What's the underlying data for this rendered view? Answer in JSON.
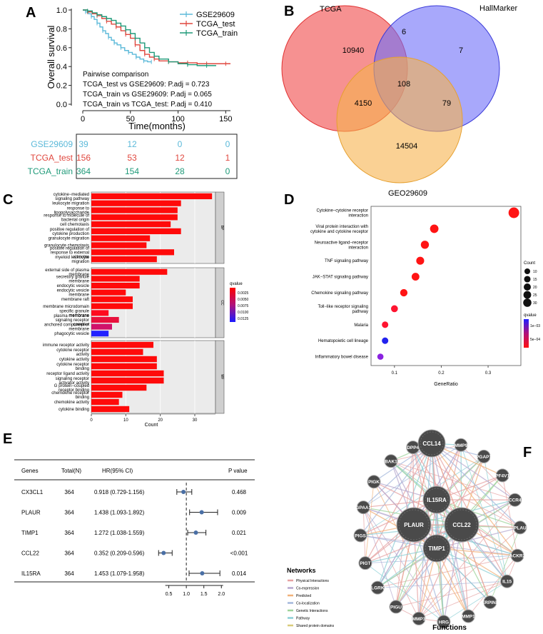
{
  "panels": {
    "A": {
      "letter": "A",
      "chart_data": {
        "type": "line",
        "subtype": "kaplan-meier",
        "ylabel": "Overall survival",
        "xlabel": "Time(months)",
        "xlim": [
          0,
          155
        ],
        "ylim": [
          0,
          1
        ],
        "xticks": [
          0,
          50,
          100,
          150
        ],
        "yticks": [
          0.0,
          0.2,
          0.4,
          0.6,
          0.8,
          1.0
        ],
        "ytick_labels": [
          "0.0",
          "0.2",
          "0.4",
          "0.6",
          "0.8",
          "1.0"
        ],
        "series": [
          {
            "name": "GSE29609",
            "color": "#5bb9d9",
            "x": [
              0,
              3,
              6,
              9,
              12,
              15,
              18,
              21,
              24,
              27,
              30,
              33,
              36,
              40,
              44,
              48,
              52,
              56,
              60,
              64,
              68,
              72
            ],
            "y": [
              1.0,
              0.98,
              0.96,
              0.93,
              0.9,
              0.86,
              0.82,
              0.78,
              0.75,
              0.71,
              0.68,
              0.65,
              0.63,
              0.6,
              0.57,
              0.55,
              0.53,
              0.5,
              0.48,
              0.46,
              0.45,
              0.45
            ]
          },
          {
            "name": "TCGA_test",
            "color": "#e0473e",
            "x": [
              0,
              5,
              10,
              15,
              20,
              25,
              30,
              35,
              40,
              45,
              50,
              55,
              60,
              65,
              70,
              75,
              80,
              90,
              100,
              110,
              120,
              130,
              140,
              150,
              155
            ],
            "y": [
              1.0,
              0.98,
              0.96,
              0.94,
              0.91,
              0.88,
              0.85,
              0.82,
              0.78,
              0.74,
              0.7,
              0.63,
              0.57,
              0.53,
              0.5,
              0.48,
              0.46,
              0.45,
              0.44,
              0.44,
              0.43,
              0.43,
              0.43,
              0.43,
              0.43
            ]
          },
          {
            "name": "TCGA_train",
            "color": "#1f9a79",
            "x": [
              0,
              5,
              10,
              15,
              20,
              25,
              30,
              35,
              40,
              45,
              50,
              55,
              60,
              65,
              70,
              75,
              80,
              90,
              100,
              110,
              120,
              130,
              140
            ],
            "y": [
              1.0,
              0.99,
              0.97,
              0.95,
              0.93,
              0.91,
              0.89,
              0.86,
              0.83,
              0.79,
              0.75,
              0.7,
              0.65,
              0.6,
              0.55,
              0.51,
              0.48,
              0.45,
              0.43,
              0.42,
              0.41,
              0.41,
              0.41
            ]
          }
        ],
        "legend": [
          "GSE29609",
          "TCGA_test",
          "TCGA_train"
        ],
        "annotation_title": "Pairwise comparison",
        "annotations": [
          "TCGA_test vs GSE29609: P.adj = 0.723",
          "TCGA_train vs GSE29609: P.adj = 0.065",
          "TCGA_train vs TCGA_test: P.adj = 0.410"
        ],
        "risk_table": [
          {
            "name": "GSE29609",
            "values": [
              "39",
              "12",
              "0",
              "0"
            ]
          },
          {
            "name": "TCGA_test",
            "values": [
              "156",
              "53",
              "12",
              "1"
            ]
          },
          {
            "name": "TCGA_train",
            "values": [
              "364",
              "154",
              "28",
              "0"
            ]
          }
        ]
      }
    },
    "B": {
      "letter": "B",
      "chart_data": {
        "type": "venn",
        "sets": [
          {
            "name": "TCGA",
            "color": "#f04848"
          },
          {
            "name": "HallMarker",
            "color": "#6e6ef8"
          },
          {
            "name": "GEO29609",
            "color": "#f7b24d"
          }
        ],
        "regions": {
          "tcga_only": "10940",
          "tcga_hall": "6",
          "hall_only": "7",
          "all_three": "108",
          "tcga_geo": "4150",
          "hall_geo": "79",
          "geo_only": "14504"
        }
      }
    },
    "C": {
      "letter": "C",
      "chart_data": {
        "type": "bar",
        "orientation": "horizontal",
        "xlabel": "Count",
        "xticks": [
          "0",
          "10",
          "20",
          "30"
        ],
        "xlim": [
          0,
          36
        ],
        "legend_title": "qvalue",
        "legend_ticks": [
          "0.0025",
          "0.0050",
          "0.0075",
          "0.0100",
          "0.0125"
        ],
        "groups": [
          {
            "name": "BP",
            "bars": [
              {
                "label": "cytokine−mediated signaling pathway",
                "value": 35,
                "color": "#ff0a0a"
              },
              {
                "label": "leukocyte migration",
                "value": 26,
                "color": "#ff0a0a"
              },
              {
                "label": "response to lipopolysaccharide",
                "value": 25,
                "color": "#ff0a0a"
              },
              {
                "label": "response to molecule of bacterial origin",
                "value": 25,
                "color": "#ff0a0a"
              },
              {
                "label": "cell chemotaxis",
                "value": 23,
                "color": "#ff0a0a"
              },
              {
                "label": "positive regulation of cytokine production",
                "value": 26,
                "color": "#ff0a0a"
              },
              {
                "label": "granulocyte migration",
                "value": 17,
                "color": "#ff0a0a"
              },
              {
                "label": "granulocyte chemotaxis",
                "value": 16,
                "color": "#ff0a0a"
              },
              {
                "label": "positive regulation of response to external stimulus",
                "value": 24,
                "color": "#ff0a0a"
              },
              {
                "label": "myeloid leukocyte migration",
                "value": 19,
                "color": "#ff0a0a"
              }
            ]
          },
          {
            "name": "CC",
            "bars": [
              {
                "label": "external side of plasma membrane",
                "value": 22,
                "color": "#ff0a0a"
              },
              {
                "label": "secretory granule membrane",
                "value": 14,
                "color": "#ff0a0a"
              },
              {
                "label": "endocytic vesicle",
                "value": 14,
                "color": "#ff0a0a"
              },
              {
                "label": "endocytic vesicle membrane",
                "value": 10,
                "color": "#ff0a0a"
              },
              {
                "label": "membrane raft",
                "value": 12,
                "color": "#ff0a0a"
              },
              {
                "label": "membrane microdomain",
                "value": 12,
                "color": "#ff0a0a"
              },
              {
                "label": "specific granule membrane",
                "value": 5,
                "color": "#ff0a1e"
              },
              {
                "label": "plasma membrane signaling receptor complex",
                "value": 8,
                "color": "#e8103c"
              },
              {
                "label": "anchored component of membrane",
                "value": 6,
                "color": "#d0126a"
              },
              {
                "label": "phagocytic vesicle",
                "value": 5,
                "color": "#2222ff"
              }
            ]
          },
          {
            "name": "MF",
            "bars": [
              {
                "label": "immune receptor activity",
                "value": 18,
                "color": "#ff0a0a"
              },
              {
                "label": "cytokine receptor activity",
                "value": 15,
                "color": "#ff0a0a"
              },
              {
                "label": "cytokine activity",
                "value": 19,
                "color": "#ff0a0a"
              },
              {
                "label": "cytokine receptor binding",
                "value": 19,
                "color": "#ff0a0a"
              },
              {
                "label": "receptor ligand activity",
                "value": 21,
                "color": "#ff0a0a"
              },
              {
                "label": "signaling receptor activator activity",
                "value": 21,
                "color": "#ff0a0a"
              },
              {
                "label": "G protein−coupled receptor binding",
                "value": 16,
                "color": "#ff0a0a"
              },
              {
                "label": "chemokine receptor binding",
                "value": 9,
                "color": "#ff0a0a"
              },
              {
                "label": "chemokine activity",
                "value": 8,
                "color": "#ff0a0a"
              },
              {
                "label": "cytokine binding",
                "value": 11,
                "color": "#ff0a0a"
              }
            ]
          }
        ]
      }
    },
    "D": {
      "letter": "D",
      "chart_data": {
        "type": "scatter",
        "subtype": "dotplot",
        "xlabel": "GeneRatio",
        "xlim": [
          0.05,
          0.37
        ],
        "xticks": [
          0.1,
          0.2,
          0.3
        ],
        "xtick_labels": [
          "0.1",
          "0.2",
          "0.3"
        ],
        "size_legend_title": "Count",
        "size_legend": [
          "10",
          "15",
          "20",
          "25",
          "30"
        ],
        "color_legend_title": "qvalue",
        "color_legend_ticks": [
          "1e−03",
          "5e−04"
        ],
        "points": [
          {
            "label": "Cytokine−cytokine receptor interaction",
            "x": 0.355,
            "count": 33,
            "color": "#ff1414"
          },
          {
            "label": "Viral protein interaction with cytokine and cytokine receptor",
            "x": 0.185,
            "count": 17,
            "color": "#ff1414"
          },
          {
            "label": "Neuroactive ligand−receptor interaction",
            "x": 0.165,
            "count": 15,
            "color": "#ff1414"
          },
          {
            "label": "TNF signaling pathway",
            "x": 0.155,
            "count": 14,
            "color": "#ff1414"
          },
          {
            "label": "JAK−STAT signaling pathway",
            "x": 0.145,
            "count": 13,
            "color": "#ff1414"
          },
          {
            "label": "Chemokine signaling pathway",
            "x": 0.12,
            "count": 11,
            "color": "#ff1414"
          },
          {
            "label": "Toll−like receptor signaling pathway",
            "x": 0.1,
            "count": 9,
            "color": "#ff1430"
          },
          {
            "label": "Malaria",
            "x": 0.08,
            "count": 7,
            "color": "#ff1430"
          },
          {
            "label": "Hematopoietic cell lineage",
            "x": 0.08,
            "count": 7,
            "color": "#2222ee"
          },
          {
            "label": "Inflammatory bowel disease",
            "x": 0.07,
            "count": 6,
            "color": "#8a22e0"
          }
        ]
      }
    },
    "E": {
      "letter": "E",
      "headers": {
        "genes": "Genes",
        "total": "Total(N)",
        "hr": "HR(95% CI)",
        "p": "P value"
      },
      "axis_ticks": [
        "0.5",
        "1.0",
        "1.5",
        "2.0"
      ],
      "chart_data": {
        "type": "table",
        "subtype": "forest-plot",
        "xlim": [
          0.0,
          2.3
        ],
        "xticks": [
          0.5,
          1.0,
          1.5,
          2.0
        ],
        "reference_line": 1.0,
        "rows": [
          {
            "gene": "CX3CL1",
            "total": "364",
            "hr_text": "0.918 (0.729-1.156)",
            "p": "0.468",
            "hr": 0.918,
            "low": 0.729,
            "high": 1.156
          },
          {
            "gene": "PLAUR",
            "total": "364",
            "hr_text": "1.438 (1.093-1.892)",
            "p": "0.009",
            "hr": 1.438,
            "low": 1.093,
            "high": 1.892
          },
          {
            "gene": "TIMP1",
            "total": "364",
            "hr_text": "1.272 (1.038-1.559)",
            "p": "0.021",
            "hr": 1.272,
            "low": 1.038,
            "high": 1.559
          },
          {
            "gene": "CCL22",
            "total": "364",
            "hr_text": "0.352 (0.209-0.596)",
            "p": "<0.001",
            "hr": 0.352,
            "low": 0.209,
            "high": 0.596
          },
          {
            "gene": "IL15RA",
            "total": "364",
            "hr_text": "1.453 (1.079-1.958)",
            "p": "0.014",
            "hr": 1.453,
            "low": 1.079,
            "high": 1.958
          }
        ]
      }
    },
    "F": {
      "letter": "F",
      "functions_label": "Functions",
      "networks_title": "Networks",
      "network_types": [
        {
          "label": "Physical Interactions",
          "color": "#e6a2a2"
        },
        {
          "label": "Co-expression",
          "color": "#b7a9cf"
        },
        {
          "label": "Predicted",
          "color": "#f1b17a"
        },
        {
          "label": "Co-localization",
          "color": "#a4b8dc"
        },
        {
          "label": "Genetic Interactions",
          "color": "#9ed39a"
        },
        {
          "label": "Pathway",
          "color": "#8ccfd6"
        },
        {
          "label": "Shared protein domains",
          "color": "#d9cc7a"
        }
      ],
      "center_genes": [
        "IL15RA",
        "PLAUR",
        "CCL22",
        "TIMP1"
      ],
      "top_gene": "CCL14",
      "ring_genes": [
        "MMP9",
        "PGAP1",
        "PF4V1",
        "CCR4",
        "PLAU",
        "ACKR2",
        "IL15",
        "SERPINB2",
        "MMP1",
        "HRG",
        "MMP3",
        "PIGU",
        "PLGRKT",
        "PIGT",
        "PIGS",
        "GPAA1",
        "PIGK",
        "BAK1",
        "DPP4"
      ]
    }
  }
}
